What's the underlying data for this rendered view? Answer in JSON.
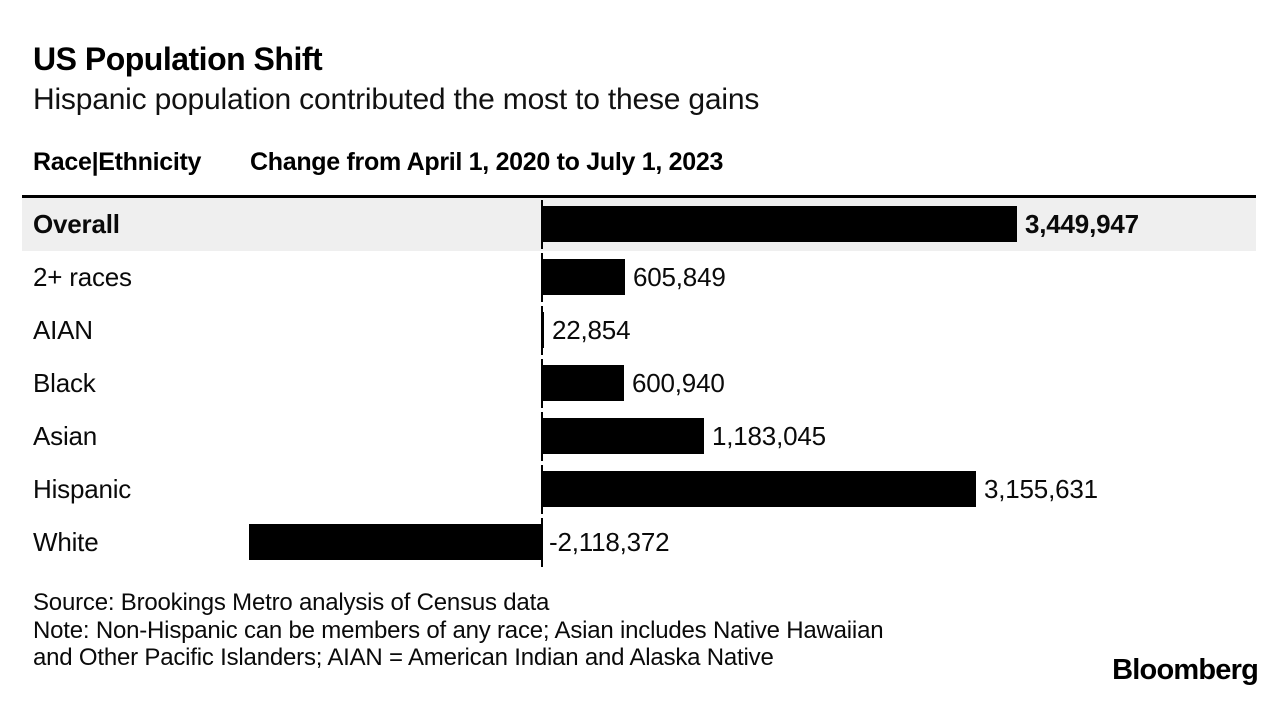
{
  "header": {
    "title": "US Population Shift",
    "subtitle": "Hispanic population contributed the most to these gains",
    "column1": "Race|Ethnicity",
    "column2": "Change from April 1, 2020 to July 1, 2023"
  },
  "chart_data": {
    "type": "bar",
    "orientation": "horizontal",
    "title": "US Population Shift",
    "subtitle": "Hispanic population contributed the most to these gains",
    "xlabel": "Change from April 1, 2020 to July 1, 2023",
    "ylabel": "Race|Ethnicity",
    "categories": [
      "Overall",
      "2+ races",
      "AIAN",
      "Black",
      "Asian",
      "Hispanic",
      "White"
    ],
    "values": [
      3449947,
      605849,
      22854,
      600940,
      1183045,
      3155631,
      -2118372
    ],
    "value_labels": [
      "3,449,947",
      "605,849",
      "22,854",
      "600,940",
      "1,183,045",
      "3,155,631",
      "-2,118,372"
    ],
    "highlighted_category": "Overall",
    "bar_color": "#000000",
    "highlight_row_bg": "#efefef",
    "zero_axis": true,
    "grid": false,
    "legend": false,
    "xlim": [
      -2400000,
      3600000
    ]
  },
  "footer": {
    "source": "Source: Brookings Metro analysis of Census data",
    "note_line1": "Note: Non-Hispanic can be members of any race; Asian includes Native Hawaiian",
    "note_line2": "and Other Pacific Islanders; AIAN = American Indian and Alaska Native",
    "logo": "Bloomberg"
  }
}
